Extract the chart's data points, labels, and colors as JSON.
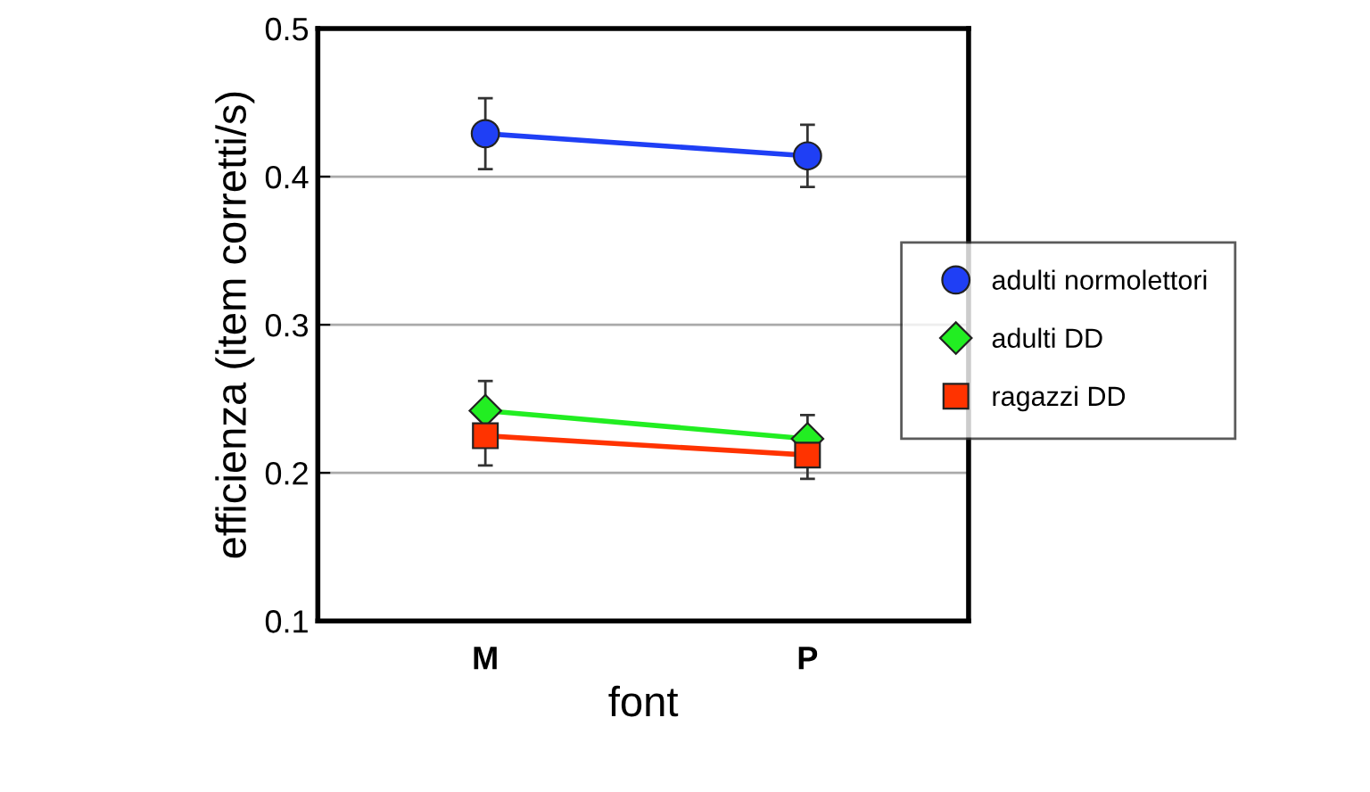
{
  "chart_data": {
    "type": "line",
    "xlabel": "font",
    "ylabel": "efficienza (item corretti/s)",
    "categories": [
      "M",
      "P"
    ],
    "series": [
      {
        "name": "adulti normolettori",
        "color": "#1f3ff5",
        "marker": "circle",
        "values": [
          0.429,
          0.414
        ],
        "errors": [
          0.024,
          0.021
        ]
      },
      {
        "name": "adulti DD",
        "color": "#22ee22",
        "marker": "diamond",
        "values": [
          0.242,
          0.223
        ],
        "errors": [
          0.02,
          0.016
        ]
      },
      {
        "name": "ragazzi DD",
        "color": "#ff3300",
        "marker": "square",
        "values": [
          0.225,
          0.212
        ],
        "errors": [
          0.02,
          0.016
        ]
      }
    ],
    "ylim": [
      0.1,
      0.5
    ],
    "yticks": [
      0.1,
      0.2,
      0.3,
      0.4,
      0.5
    ],
    "grid": "y",
    "legend": "right"
  }
}
